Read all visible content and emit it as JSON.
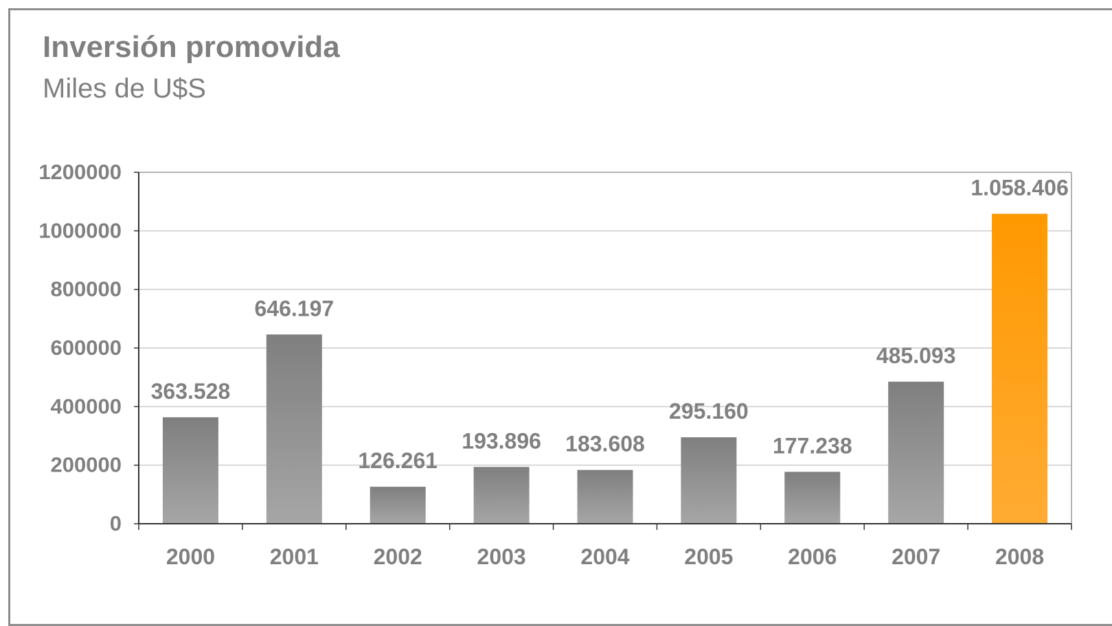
{
  "header": {
    "title": "Inversión promovida",
    "subtitle": "Miles de U$S"
  },
  "colors": {
    "bar_default_top": "#7f7f7f",
    "bar_default_bottom": "#a6a6a6",
    "bar_highlight_top": "#ff9900",
    "bar_highlight_bottom": "#ffab33",
    "text": "#808080",
    "gridline": "#cccccc",
    "axis": "#333333"
  },
  "chart_data": {
    "type": "bar",
    "title": "Inversión promovida",
    "subtitle": "Miles de U$S",
    "categories": [
      "2000",
      "2001",
      "2002",
      "2003",
      "2004",
      "2005",
      "2006",
      "2007",
      "2008"
    ],
    "values": [
      363528,
      646197,
      126261,
      193896,
      183608,
      295160,
      177238,
      485093,
      1058406
    ],
    "data_labels": [
      "363.528",
      "646.197",
      "126.261",
      "193.896",
      "183.608",
      "295.160",
      "177.238",
      "485.093",
      "1.058.406"
    ],
    "highlight_index": 8,
    "y_ticks": [
      0,
      200000,
      400000,
      600000,
      800000,
      1000000,
      1200000
    ],
    "ylim": [
      0,
      1200000
    ],
    "xlabel": "",
    "ylabel": "",
    "grid": true,
    "legend": "none"
  }
}
